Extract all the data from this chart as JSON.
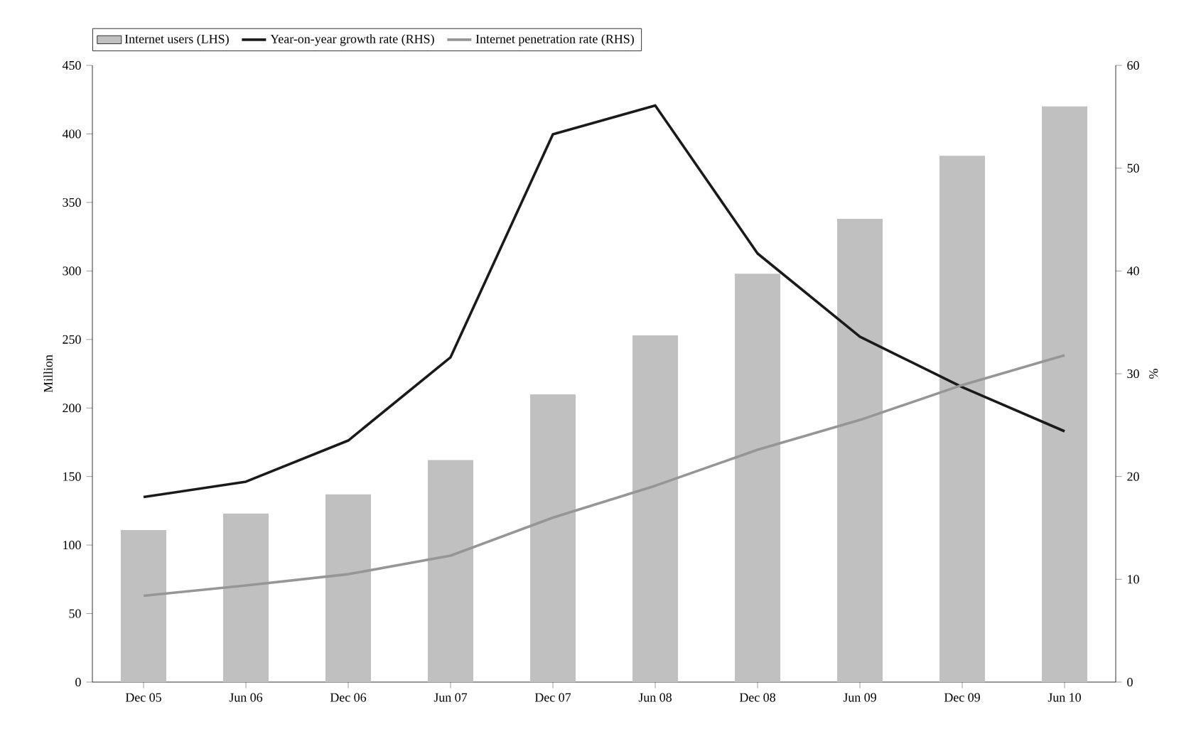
{
  "chart_data": {
    "type": "bar",
    "categories": [
      "Dec 05",
      "Jun 06",
      "Dec 06",
      "Jun 07",
      "Dec 07",
      "Jun 08",
      "Dec 08",
      "Jun 09",
      "Dec 09",
      "Jun 10"
    ],
    "ylabel": "Million",
    "y2label": "%",
    "ylim": [
      0,
      450
    ],
    "yticks": [
      0,
      50,
      100,
      150,
      200,
      250,
      300,
      350,
      400,
      450
    ],
    "y2lim": [
      0,
      60
    ],
    "y2ticks": [
      0,
      10,
      20,
      30,
      40,
      50,
      60
    ],
    "legend": "top",
    "series": [
      {
        "name": "Internet users (LHS)",
        "color": "#c0c0c0",
        "values": [
          111,
          123,
          137,
          162,
          210,
          253,
          298,
          338,
          384,
          420
        ]
      },
      {
        "name": "Year-on-year growth rate (RHS)",
        "type": "line",
        "axis": "y2",
        "color": "#1a1a1a",
        "values": [
          18.0,
          19.5,
          23.5,
          31.6,
          53.3,
          56.1,
          41.7,
          33.6,
          28.7,
          24.4
        ]
      },
      {
        "name": "Internet penetration rate (RHS)",
        "type": "line",
        "axis": "y2",
        "color": "#969696",
        "values": [
          8.4,
          9.4,
          10.5,
          12.3,
          16.0,
          19.1,
          22.6,
          25.5,
          28.9,
          31.8
        ]
      }
    ]
  }
}
